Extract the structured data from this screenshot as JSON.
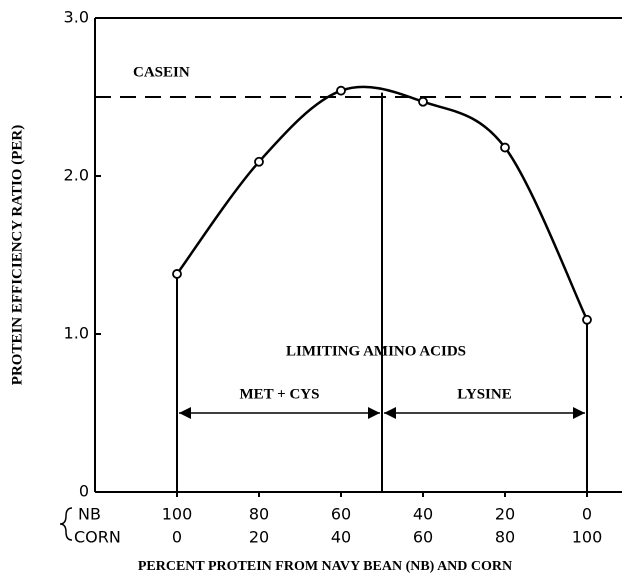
{
  "chart_data": {
    "type": "line",
    "y_label": "PROTEIN EFFICIENCY RATIO (PER)",
    "x_label": "PERCENT PROTEIN FROM NAVY BEAN (NB) AND CORN",
    "x_row_labels": [
      "NB",
      "CORN"
    ],
    "x": [
      100,
      80,
      60,
      40,
      20,
      0
    ],
    "series": [
      {
        "name": "PER",
        "color": "#000",
        "values": [
          1.38,
          2.09,
          2.54,
          2.47,
          2.18,
          1.09
        ]
      }
    ],
    "xlim": [
      120,
      -10
    ],
    "xticks": [
      100,
      80,
      60,
      40,
      20,
      0
    ],
    "corn_ticks": [
      0,
      20,
      40,
      60,
      80,
      100
    ],
    "ylim": [
      0,
      3
    ],
    "yticks": [
      0,
      {
        "value": 1,
        "label": "1.0"
      },
      {
        "value": 2,
        "label": "2.0"
      },
      {
        "value": 3,
        "label": "3.0"
      }
    ],
    "reference": {
      "label": "CASEIN",
      "value": 2.5
    },
    "divider_x": 50,
    "arrow_y": 0.5,
    "annotation": "LIMITING AMINO ACIDS",
    "regions": [
      "MET + CYS",
      "LYSINE"
    ]
  }
}
